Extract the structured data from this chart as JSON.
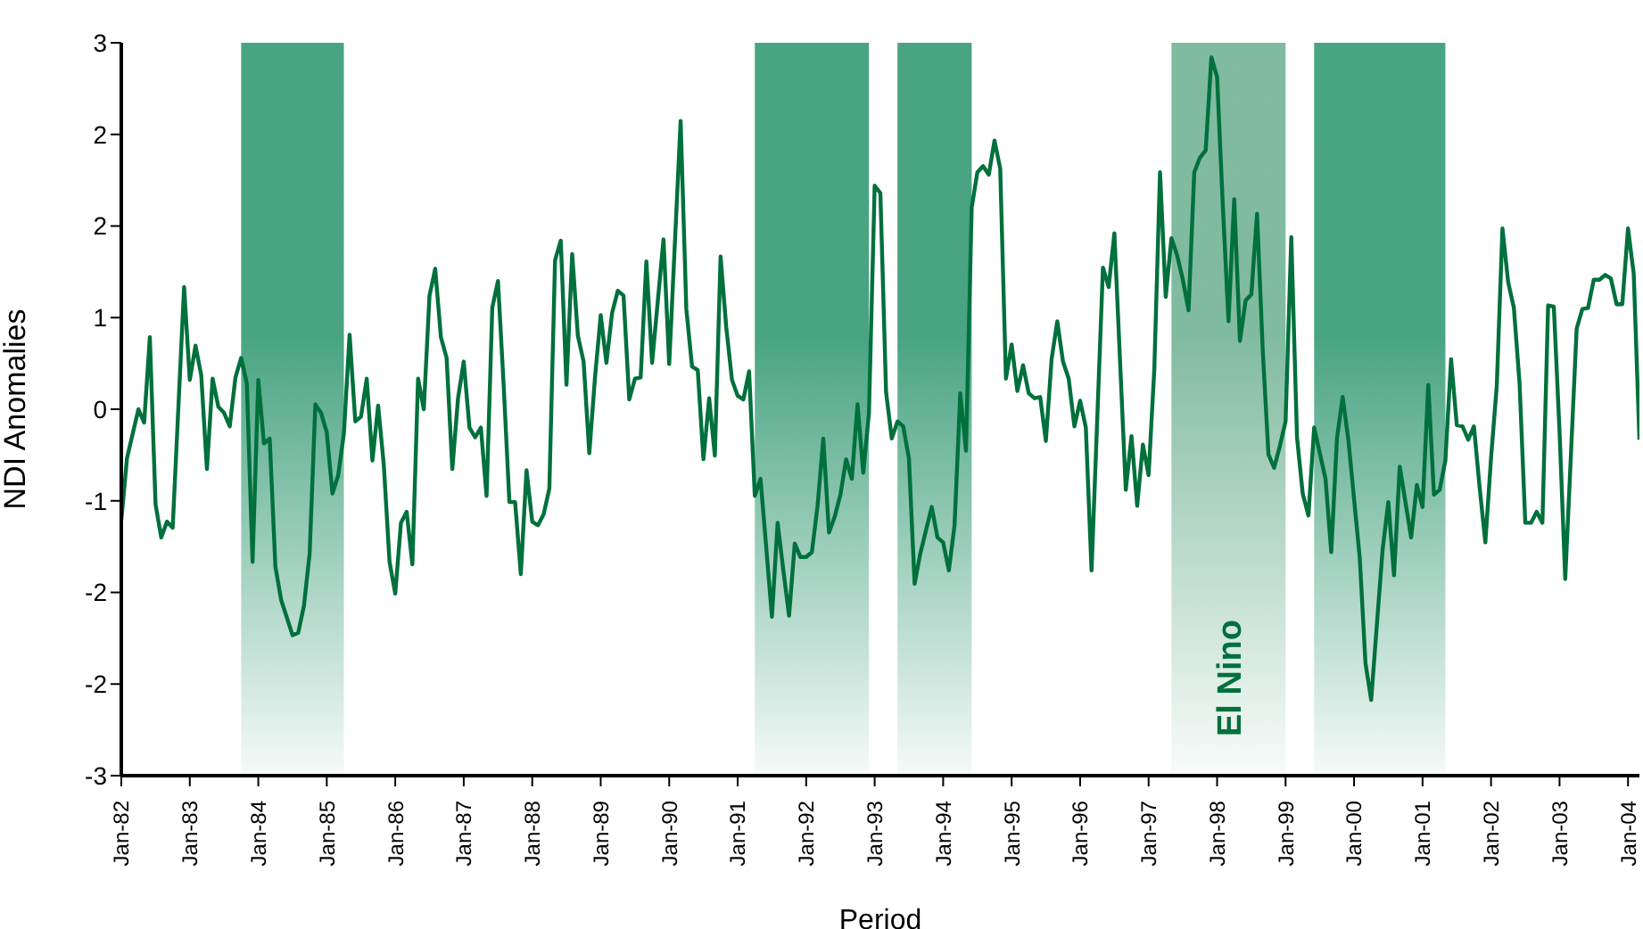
{
  "chart_data": {
    "type": "line",
    "xlabel": "Period",
    "ylabel": "NDI Anomalies",
    "marker": "none",
    "line_style": "solid",
    "xlim": [
      "1982-01",
      "2004-03"
    ],
    "xticks": [
      {
        "value": "1982-01",
        "label": "Jan-82"
      },
      {
        "value": "1983-01",
        "label": "Jan-83"
      },
      {
        "value": "1984-01",
        "label": "Jan-84"
      },
      {
        "value": "1985-01",
        "label": "Jan-85"
      },
      {
        "value": "1986-01",
        "label": "Jan-86"
      },
      {
        "value": "1987-01",
        "label": "Jan-87"
      },
      {
        "value": "1988-01",
        "label": "Jan-88"
      },
      {
        "value": "1989-01",
        "label": "Jan-89"
      },
      {
        "value": "1990-01",
        "label": "Jan-90"
      },
      {
        "value": "1991-01",
        "label": "Jan-91"
      },
      {
        "value": "1992-01",
        "label": "Jan-92"
      },
      {
        "value": "1993-01",
        "label": "Jan-93"
      },
      {
        "value": "1994-01",
        "label": "Jan-94"
      },
      {
        "value": "1995-01",
        "label": "Jan-95"
      },
      {
        "value": "1996-01",
        "label": "Jan-96"
      },
      {
        "value": "1997-01",
        "label": "Jan-97"
      },
      {
        "value": "1998-01",
        "label": "Jan-98"
      },
      {
        "value": "1999-01",
        "label": "Jan-99"
      },
      {
        "value": "2000-01",
        "label": "Jan-00"
      },
      {
        "value": "2001-01",
        "label": "Jan-01"
      },
      {
        "value": "2002-01",
        "label": "Jan-02"
      },
      {
        "value": "2003-01",
        "label": "Jan-03"
      },
      {
        "value": "2004-01",
        "label": "Jan-04"
      }
    ],
    "ylim": [
      -3,
      3
    ],
    "yticks": [
      {
        "value": -3,
        "label": "-3"
      },
      {
        "value": -2.25,
        "label": "-2"
      },
      {
        "value": -1.5,
        "label": "-2"
      },
      {
        "value": -0.75,
        "label": "-1"
      },
      {
        "value": 0,
        "label": "0"
      },
      {
        "value": 0.75,
        "label": "1"
      },
      {
        "value": 1.5,
        "label": "2"
      },
      {
        "value": 2.25,
        "label": "2"
      },
      {
        "value": 3,
        "label": "3"
      }
    ],
    "x": [
      "1982-01",
      "1982-02",
      "1982-04",
      "1982-05",
      "1982-06",
      "1982-07",
      "1982-08",
      "1982-09",
      "1982-10",
      "1982-12",
      "1983-01",
      "1983-02",
      "1983-03",
      "1983-04",
      "1983-05",
      "1983-06",
      "1983-07",
      "1983-08",
      "1983-09",
      "1983-10",
      "1983-11",
      "1983-12",
      "1984-01",
      "1984-02",
      "1984-03",
      "1984-04",
      "1984-05",
      "1984-07",
      "1984-08",
      "1984-09",
      "1984-10",
      "1984-11",
      "1984-12",
      "1985-01",
      "1985-02",
      "1985-03",
      "1985-04",
      "1985-05",
      "1985-06",
      "1985-07",
      "1985-08",
      "1985-09",
      "1985-10",
      "1985-11",
      "1985-12",
      "1986-01",
      "1986-02",
      "1986-03",
      "1986-04",
      "1986-05",
      "1986-06",
      "1986-07",
      "1986-08",
      "1986-09",
      "1986-10",
      "1986-11",
      "1986-12",
      "1987-01",
      "1987-02",
      "1987-03",
      "1987-04",
      "1987-05",
      "1987-06",
      "1987-07",
      "1987-08",
      "1987-09",
      "1987-10",
      "1987-11",
      "1987-12",
      "1988-01",
      "1988-02",
      "1988-03",
      "1988-04",
      "1988-05",
      "1988-06",
      "1988-07",
      "1988-08",
      "1988-09",
      "1988-10",
      "1988-11",
      "1988-12",
      "1989-01",
      "1989-02",
      "1989-03",
      "1989-04",
      "1989-05",
      "1989-06",
      "1989-07",
      "1989-08",
      "1989-09",
      "1989-10",
      "1989-12",
      "1990-01",
      "1990-03",
      "1990-04",
      "1990-05",
      "1990-06",
      "1990-07",
      "1990-08",
      "1990-09",
      "1990-10",
      "1990-11",
      "1990-12",
      "1991-01",
      "1991-02",
      "1991-03",
      "1991-04",
      "1991-05",
      "1991-06",
      "1991-07",
      "1991-08",
      "1991-09",
      "1991-10",
      "1991-11",
      "1991-12",
      "1992-01",
      "1992-02",
      "1992-03",
      "1992-04",
      "1992-05",
      "1992-06",
      "1992-07",
      "1992-08",
      "1992-09",
      "1992-10",
      "1992-11",
      "1992-12",
      "1993-01",
      "1993-02",
      "1993-03",
      "1993-04",
      "1993-05",
      "1993-06",
      "1993-07",
      "1993-08",
      "1993-09",
      "1993-11",
      "1993-12",
      "1994-01",
      "1994-02",
      "1994-03",
      "1994-04",
      "1994-05",
      "1994-06",
      "1994-07",
      "1994-08",
      "1994-09",
      "1994-10",
      "1994-11",
      "1994-12",
      "1995-01",
      "1995-02",
      "1995-03",
      "1995-04",
      "1995-05",
      "1995-06",
      "1995-07",
      "1995-08",
      "1995-09",
      "1995-10",
      "1995-11",
      "1995-12",
      "1996-01",
      "1996-02",
      "1996-03",
      "1996-05",
      "1996-06",
      "1996-07",
      "1996-09",
      "1996-10",
      "1996-11",
      "1996-12",
      "1997-01",
      "1997-02",
      "1997-03",
      "1997-04",
      "1997-05",
      "1997-06",
      "1997-07",
      "1997-08",
      "1997-09",
      "1997-10",
      "1997-11",
      "1997-12",
      "1998-01",
      "1998-02",
      "1998-03",
      "1998-04",
      "1998-05",
      "1998-06",
      "1998-07",
      "1998-08",
      "1998-09",
      "1998-10",
      "1998-11",
      "1998-12",
      "1999-01",
      "1999-02",
      "1999-03",
      "1999-04",
      "1999-05",
      "1999-06",
      "1999-08",
      "1999-09",
      "1999-10",
      "1999-11",
      "1999-12",
      "2000-02",
      "2000-03",
      "2000-04",
      "2000-05",
      "2000-06",
      "2000-07",
      "2000-08",
      "2000-09",
      "2000-11",
      "2000-12",
      "2001-01",
      "2001-02",
      "2001-03",
      "2001-04",
      "2001-05",
      "2001-06",
      "2001-07",
      "2001-08",
      "2001-09",
      "2001-10",
      "2001-11",
      "2001-12",
      "2002-01",
      "2002-02",
      "2002-03",
      "2002-04",
      "2002-05",
      "2002-06",
      "2002-07",
      "2002-08",
      "2002-09",
      "2002-10",
      "2002-11",
      "2002-12",
      "2003-01",
      "2003-02",
      "2003-03",
      "2003-04",
      "2003-05",
      "2003-06",
      "2003-07",
      "2003-08",
      "2003-09",
      "2003-10",
      "2003-11",
      "2003-12",
      "2004-01",
      "2004-02",
      "2004-03"
    ],
    "series": [
      {
        "color": "#00703c",
        "values": [
          -0.91,
          -0.4,
          0,
          -0.11,
          0.59,
          -0.78,
          -1.05,
          -0.92,
          -0.97,
          1.0,
          0.24,
          0.52,
          0.28,
          -0.49,
          0.25,
          0.02,
          -0.03,
          -0.14,
          0.26,
          0.42,
          0.21,
          -1.25,
          0.24,
          -0.28,
          -0.24,
          -1.29,
          -1.56,
          -1.85,
          -1.83,
          -1.61,
          -1.18,
          0.04,
          -0.03,
          -0.19,
          -0.69,
          -0.54,
          -0.2,
          0.61,
          -0.1,
          -0.06,
          0.25,
          -0.42,
          0.03,
          -0.46,
          -1.25,
          -1.51,
          -0.93,
          -0.84,
          -1.27,
          0.25,
          0,
          0.93,
          1.15,
          0.59,
          0.42,
          -0.49,
          0.09,
          0.39,
          -0.15,
          -0.23,
          -0.15,
          -0.71,
          0.83,
          1.05,
          0.19,
          -0.76,
          -0.76,
          -1.35,
          -0.5,
          -0.92,
          -0.95,
          -0.86,
          -0.65,
          1.22,
          1.38,
          0.2,
          1.27,
          0.6,
          0.39,
          -0.36,
          0.26,
          0.77,
          0.38,
          0.79,
          0.97,
          0.93,
          0.08,
          0.25,
          0.26,
          1.21,
          0.38,
          1.39,
          0.37,
          2.36,
          0.82,
          0.35,
          0.32,
          -0.41,
          0.09,
          -0.38,
          1.25,
          0.67,
          0.24,
          0.11,
          0.08,
          0.31,
          -0.71,
          -0.57,
          -1.13,
          -1.7,
          -0.93,
          -1.32,
          -1.69,
          -1.1,
          -1.21,
          -1.21,
          -1.17,
          -0.79,
          -0.24,
          -1.01,
          -0.88,
          -0.7,
          -0.41,
          -0.57,
          0.04,
          -0.52,
          -0.03,
          1.83,
          1.77,
          0.14,
          -0.24,
          -0.1,
          -0.14,
          -0.4,
          -1.43,
          -1.18,
          -0.8,
          -1.05,
          -1.09,
          -1.32,
          -0.95,
          0.13,
          -0.34,
          1.65,
          1.94,
          1.99,
          1.92,
          2.2,
          1.97,
          0.25,
          0.53,
          0.15,
          0.36,
          0.13,
          0.09,
          0.1,
          -0.26,
          0.41,
          0.72,
          0.39,
          0.25,
          -0.14,
          0.07,
          -0.15,
          -1.32,
          1.16,
          1.0,
          1.44,
          -0.66,
          -0.22,
          -0.79,
          -0.29,
          -0.54,
          0.33,
          1.94,
          0.92,
          1.4,
          1.26,
          1.06,
          0.81,
          1.94,
          2.06,
          2.12,
          2.88,
          2.72,
          1.67,
          0.72,
          1.72,
          0.56,
          0.89,
          0.94,
          1.6,
          0.48,
          -0.37,
          -0.48,
          -0.3,
          -0.1,
          1.41,
          -0.23,
          -0.69,
          -0.87,
          -0.15,
          -0.57,
          -1.17,
          -0.24,
          0.1,
          -0.25,
          -1.22,
          -2.08,
          -2.38,
          -1.76,
          -1.15,
          -0.76,
          -1.36,
          -0.47,
          -1.05,
          -0.62,
          -0.8,
          0.2,
          -0.7,
          -0.66,
          -0.42,
          0.41,
          -0.13,
          -0.14,
          -0.25,
          -0.14,
          -0.64,
          -1.09,
          -0.4,
          0.19,
          1.48,
          1.04,
          0.83,
          0.21,
          -0.93,
          -0.93,
          -0.84,
          -0.93,
          0.85,
          0.84,
          -0.18,
          -1.39,
          -0.37,
          0.66,
          0.82,
          0.83,
          1.06,
          1.06,
          1.1,
          1.07,
          0.86,
          0.86,
          1.48,
          1.11,
          -0.25
        ]
      }
    ],
    "bands": [
      {
        "axis": "x",
        "from": "1983-10",
        "to": "1985-04",
        "color": "#3f9f7c"
      },
      {
        "axis": "x",
        "from": "1991-04",
        "to": "1992-12",
        "color": "#3f9f7c"
      },
      {
        "axis": "x",
        "from": "1993-05",
        "to": "1994-06",
        "color": "#3f9f7c"
      },
      {
        "axis": "x",
        "from": "1997-05",
        "to": "1999-01",
        "color": "#7ab79a",
        "label": "El Nino"
      },
      {
        "axis": "x",
        "from": "1999-06",
        "to": "2001-05",
        "color": "#3f9f7c"
      }
    ]
  }
}
